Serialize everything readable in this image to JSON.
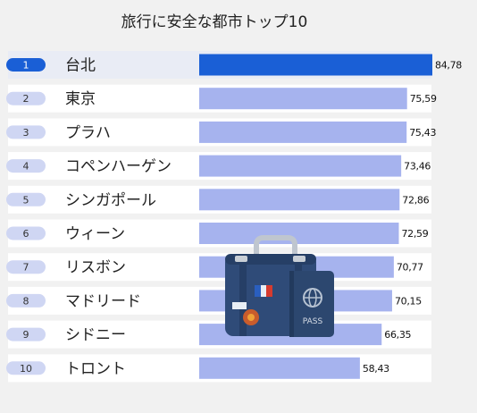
{
  "chart_data": {
    "type": "bar",
    "title": "旅行に安全な都市トップ10",
    "ranks": [
      "1",
      "2",
      "3",
      "4",
      "5",
      "6",
      "7",
      "8",
      "9",
      "10"
    ],
    "categories": [
      "台北",
      "東京",
      "プラハ",
      "コペンハーゲン",
      "シンガポール",
      "ウィーン",
      "リスボン",
      "マドリード",
      "シドニー",
      "トロント"
    ],
    "values": [
      84.78,
      75.59,
      75.43,
      73.46,
      72.86,
      72.59,
      70.77,
      70.15,
      66.35,
      58.43
    ],
    "value_labels": [
      "84,78",
      "75,59",
      "75,43",
      "73,46",
      "72,86",
      "72,59",
      "70,77",
      "70,15",
      "66,35",
      "58,43"
    ],
    "xlim": [
      0,
      84.78
    ],
    "orientation": "horizontal",
    "grid": false,
    "highlight_index": 0,
    "colors": {
      "highlight_bar": "#1a5fd6",
      "bar": "#a6b3ee",
      "highlight_pill": "#1a5fd6",
      "pill": "#cfd6f3",
      "row_band": "#ffffff",
      "highlight_row_band": "#e9ecf5",
      "background": "#f1f1f1"
    },
    "illustration": "suitcase-and-passport"
  }
}
